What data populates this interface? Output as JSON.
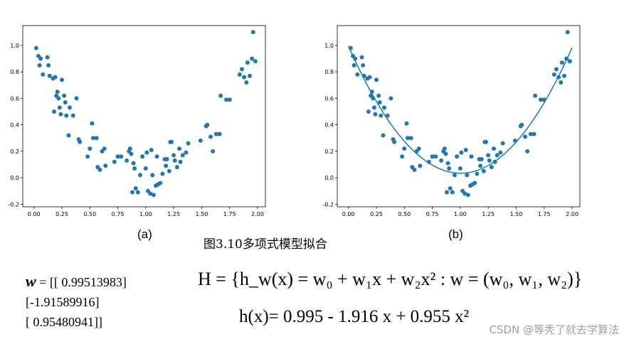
{
  "chart_data": [
    {
      "type": "scatter",
      "panel_label": "(a)",
      "xlim": [
        -0.1,
        2.07
      ],
      "ylim": [
        -0.22,
        1.15
      ],
      "xticks": [
        "0.00",
        "0.25",
        "0.50",
        "0.75",
        "1.00",
        "1.25",
        "1.50",
        "1.75",
        "2.00"
      ],
      "yticks": [
        "-0.2",
        "0.0",
        "0.2",
        "0.4",
        "0.6",
        "0.8",
        "1.0"
      ],
      "point_color": "#1f77b4",
      "points": [
        [
          0.02,
          0.98
        ],
        [
          0.04,
          0.92
        ],
        [
          0.05,
          0.85
        ],
        [
          0.06,
          0.9
        ],
        [
          0.08,
          0.78
        ],
        [
          0.12,
          0.91
        ],
        [
          0.13,
          0.85
        ],
        [
          0.14,
          0.77
        ],
        [
          0.17,
          0.75
        ],
        [
          0.18,
          0.5
        ],
        [
          0.19,
          0.76
        ],
        [
          0.2,
          0.62
        ],
        [
          0.21,
          0.65
        ],
        [
          0.22,
          0.6
        ],
        [
          0.23,
          0.53
        ],
        [
          0.24,
          0.48
        ],
        [
          0.25,
          0.74
        ],
        [
          0.27,
          0.62
        ],
        [
          0.28,
          0.57
        ],
        [
          0.29,
          0.47
        ],
        [
          0.31,
          0.32
        ],
        [
          0.32,
          0.53
        ],
        [
          0.35,
          0.47
        ],
        [
          0.38,
          0.6
        ],
        [
          0.4,
          0.29
        ],
        [
          0.41,
          0.27
        ],
        [
          0.48,
          0.16
        ],
        [
          0.5,
          0.22
        ],
        [
          0.52,
          0.41
        ],
        [
          0.53,
          0.3
        ],
        [
          0.56,
          0.3
        ],
        [
          0.57,
          0.08
        ],
        [
          0.59,
          0.06
        ],
        [
          0.61,
          0.2
        ],
        [
          0.63,
          0.22
        ],
        [
          0.64,
          0.09
        ],
        [
          0.72,
          0.12
        ],
        [
          0.75,
          0.16
        ],
        [
          0.78,
          0.16
        ],
        [
          0.83,
          0.13
        ],
        [
          0.85,
          0.2
        ],
        [
          0.86,
          0.22
        ],
        [
          0.87,
          0.18
        ],
        [
          0.88,
          -0.11
        ],
        [
          0.89,
          0.11
        ],
        [
          0.9,
          0.07
        ],
        [
          0.91,
          -0.08
        ],
        [
          0.93,
          -0.11
        ],
        [
          0.95,
          0.02
        ],
        [
          0.97,
          0.16
        ],
        [
          1.0,
          0.07
        ],
        [
          1.01,
          0.19
        ],
        [
          1.02,
          -0.1
        ],
        [
          1.04,
          -0.12
        ],
        [
          1.05,
          0.21
        ],
        [
          1.06,
          0.02
        ],
        [
          1.07,
          -0.13
        ],
        [
          1.09,
          -0.06
        ],
        [
          1.1,
          0.16
        ],
        [
          1.11,
          -0.05
        ],
        [
          1.13,
          -0.04
        ],
        [
          1.15,
          0.03
        ],
        [
          1.17,
          0.14
        ],
        [
          1.18,
          0.09
        ],
        [
          1.19,
          0.14
        ],
        [
          1.21,
          0.05
        ],
        [
          1.22,
          0.27
        ],
        [
          1.23,
          0.27
        ],
        [
          1.25,
          0.17
        ],
        [
          1.26,
          0.13
        ],
        [
          1.28,
          0.08
        ],
        [
          1.3,
          0.22
        ],
        [
          1.31,
          0.12
        ],
        [
          1.33,
          0.17
        ],
        [
          1.36,
          0.19
        ],
        [
          1.38,
          0.26
        ],
        [
          1.49,
          0.28
        ],
        [
          1.54,
          0.39
        ],
        [
          1.55,
          0.4
        ],
        [
          1.58,
          0.31
        ],
        [
          1.6,
          0.2
        ],
        [
          1.63,
          0.33
        ],
        [
          1.66,
          0.33
        ],
        [
          1.67,
          0.62
        ],
        [
          1.72,
          0.59
        ],
        [
          1.75,
          0.59
        ],
        [
          1.84,
          0.78
        ],
        [
          1.86,
          0.82
        ],
        [
          1.88,
          0.76
        ],
        [
          1.9,
          0.72
        ],
        [
          1.91,
          0.87
        ],
        [
          1.93,
          0.77
        ],
        [
          1.95,
          0.9
        ],
        [
          1.96,
          1.1
        ],
        [
          1.98,
          0.88
        ]
      ]
    },
    {
      "type": "scatter",
      "panel_label": "(b)",
      "xlim": [
        -0.1,
        2.07
      ],
      "ylim": [
        -0.22,
        1.15
      ],
      "xticks": [
        "0.00",
        "0.25",
        "0.50",
        "0.75",
        "1.00",
        "1.25",
        "1.50",
        "1.75",
        "2.00"
      ],
      "yticks": [
        "-0.2",
        "0.0",
        "0.2",
        "0.4",
        "0.6",
        "0.8",
        "1.0"
      ],
      "point_color": "#1f77b4",
      "same_points_as_panel": "(a)",
      "fit_line": {
        "type": "polynomial",
        "coefficients": [
          0.99513983,
          -1.91589916,
          0.95480941
        ],
        "x_range": [
          0.0,
          2.0
        ],
        "color": "#1f77b4"
      }
    }
  ],
  "caption": "图3.10多项式模型拟合",
  "w_vector": {
    "symbol": "w",
    "rows": [
      "= [[ 0.99513983]",
      "[-1.91589916]",
      "[ 0.95480941]]"
    ]
  },
  "equation_H": "H = {h_w(x) = w₀ + w₁x + w₂x² : w = (w₀, w₁, w₂)}",
  "equation_h": "h(x)= 0.995 - 1.916 x + 0.955 x²",
  "watermark": "CSDN @等秃了就去学算法"
}
